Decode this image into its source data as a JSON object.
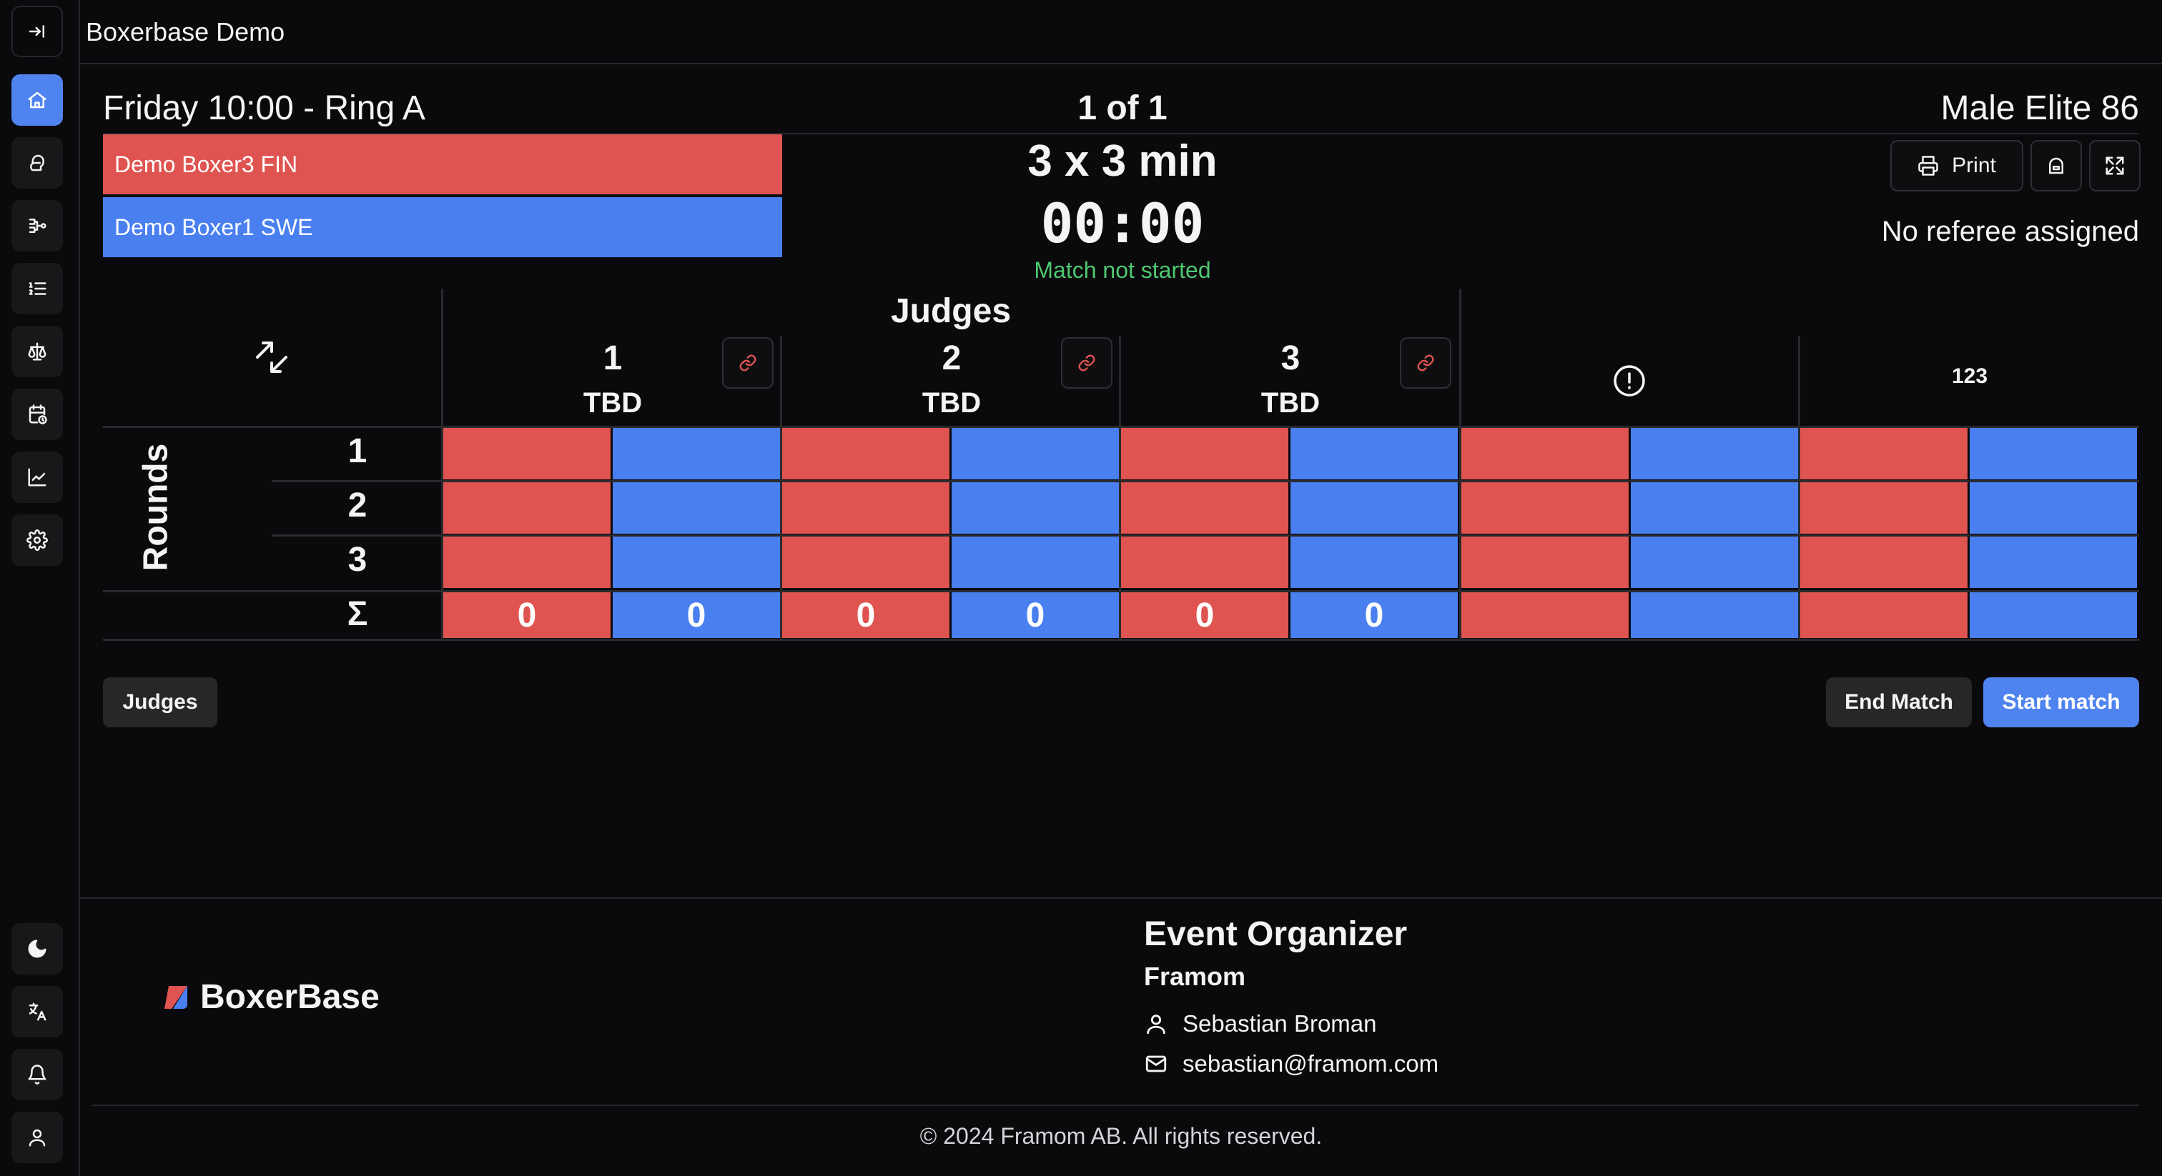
{
  "app": {
    "title": "Boxerbase Demo"
  },
  "sidebar": {
    "top_items": [
      {
        "icon": "collapse-icon"
      },
      {
        "icon": "home-icon",
        "active": true
      },
      {
        "icon": "glove-icon"
      },
      {
        "icon": "bracket-icon"
      },
      {
        "icon": "list-ordered-icon"
      },
      {
        "icon": "scale-icon"
      },
      {
        "icon": "calendar-clock-icon"
      },
      {
        "icon": "chart-icon"
      },
      {
        "icon": "gear-icon"
      }
    ],
    "bottom_items": [
      {
        "icon": "moon-icon"
      },
      {
        "icon": "translate-icon"
      },
      {
        "icon": "bell-icon"
      },
      {
        "icon": "user-icon"
      }
    ]
  },
  "match": {
    "schedule": "Friday 10:00 - Ring A",
    "position": "1 of 1",
    "category": "Male Elite 86",
    "red_corner": "Demo Boxer3 FIN",
    "blue_corner": "Demo Boxer1 SWE",
    "duration": "3 x 3 min",
    "clock": "00:00",
    "status": "Match not started",
    "referee": "No referee assigned",
    "print_label": "Print"
  },
  "scoreboard": {
    "judges_label": "Judges",
    "rounds_label": "Rounds",
    "sigma": "Σ",
    "judges": [
      {
        "number": "1",
        "name": "TBD"
      },
      {
        "number": "2",
        "name": "TBD"
      },
      {
        "number": "3",
        "name": "TBD"
      }
    ],
    "rounds": [
      "1",
      "2",
      "3"
    ],
    "totals": [
      "0",
      "0",
      "0",
      "0",
      "0",
      "0"
    ],
    "numbers_column_label": "123"
  },
  "actions": {
    "judges_button": "Judges",
    "end_match_button": "End Match",
    "start_match_button": "Start match"
  },
  "footer": {
    "brand": "BoxerBase",
    "organizer_title": "Event Organizer",
    "organizer_name": "Framom",
    "contact_name": "Sebastian Broman",
    "contact_email": "sebastian@framom.com",
    "copyright": "© 2024 Framom AB. All rights reserved."
  },
  "colors": {
    "red_corner": "#df5450",
    "blue_corner": "#4a7ff0",
    "accent": "#4f84f0",
    "status_green": "#4ec870"
  }
}
